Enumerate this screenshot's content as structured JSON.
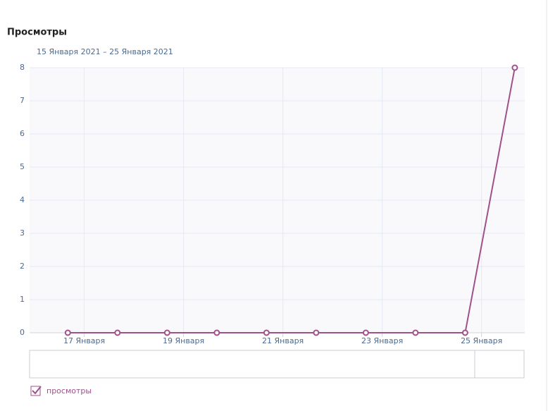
{
  "chart_data": {
    "type": "line",
    "title": "Просмотры",
    "subtitle": "15 Января 2021 – 25 Января 2021",
    "x": [
      16.67,
      17.67,
      18.67,
      19.67,
      20.67,
      21.67,
      22.67,
      23.67,
      24.67,
      25.67
    ],
    "series": [
      {
        "name": "просмотры",
        "color": "#a0508a",
        "values": [
          0,
          0,
          0,
          0,
          0,
          0,
          0,
          0,
          0,
          8
        ]
      }
    ],
    "xlim": [
      15.9,
      25.87
    ],
    "xticks": [
      {
        "value": 17,
        "label": "17 Января"
      },
      {
        "value": 19,
        "label": "19 Января"
      },
      {
        "value": 21,
        "label": "21 Января"
      },
      {
        "value": 23,
        "label": "23 Января"
      },
      {
        "value": 25,
        "label": "25 Января"
      }
    ],
    "ylim": [
      0,
      8
    ],
    "yticks": [
      0,
      1,
      2,
      3,
      4,
      5,
      6,
      7,
      8
    ],
    "grid": true
  }
}
